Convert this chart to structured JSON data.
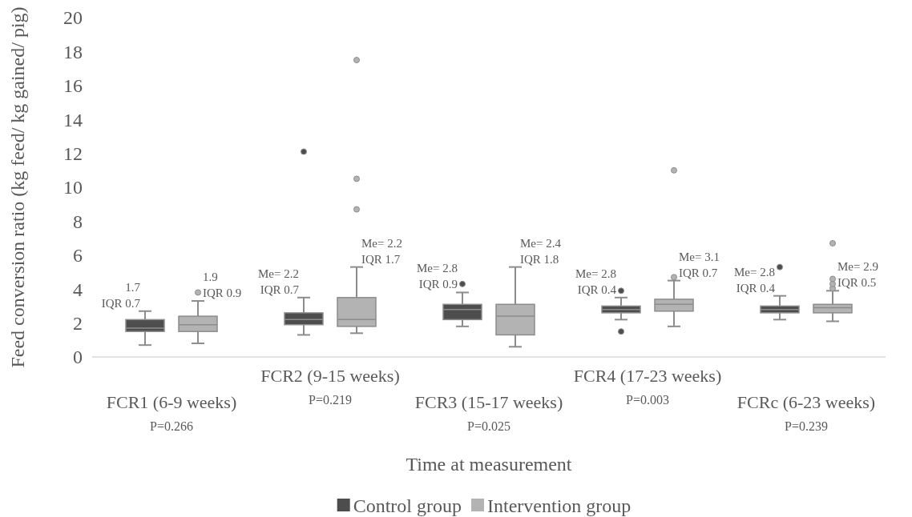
{
  "chart_data": {
    "type": "box",
    "xlabel": "Time at measurement",
    "ylabel": "Feed conversion ratio (kg feed/ kg gained/ pig)",
    "categories": [
      "FCR1 (6-9 weeks)",
      "FCR2 (9-15 weeks)",
      "FCR3 (15-17 weeks)",
      "FCR4 (17-23 weeks)",
      "FCRc (6-23 weeks)"
    ],
    "ylim": [
      0,
      20
    ],
    "yticks": [
      0,
      2,
      4,
      6,
      8,
      10,
      12,
      14,
      16,
      18,
      20
    ],
    "grid": false,
    "legend": "bottom",
    "series": [
      {
        "name": "Control group",
        "color": "#4d4d4d",
        "value_labels": [
          "1.7\nIQR 0.7",
          "Me= 2.2\nIQR 0.7",
          "Me= 2.8\nIQR 0.9",
          "Me= 2.8\nIQR 0.4",
          "Me= 2.8\nIQR 0.4"
        ],
        "boxes": [
          {
            "low": 0.7,
            "q1": 1.5,
            "median": 1.7,
            "q3": 2.2,
            "high": 2.7
          },
          {
            "low": 1.3,
            "q1": 1.9,
            "median": 2.2,
            "q3": 2.6,
            "high": 3.5,
            "outliers": [
              12.1
            ]
          },
          {
            "low": 1.8,
            "q1": 2.2,
            "median": 2.8,
            "q3": 3.1,
            "high": 3.8,
            "outliers": [
              4.3
            ]
          },
          {
            "low": 2.2,
            "q1": 2.6,
            "median": 2.8,
            "q3": 3.0,
            "high": 3.5,
            "outliers": [
              3.9,
              1.5
            ]
          },
          {
            "low": 2.2,
            "q1": 2.6,
            "median": 2.8,
            "q3": 3.0,
            "high": 3.6,
            "outliers": [
              5.3
            ]
          }
        ]
      },
      {
        "name": "Intervention group",
        "color": "#b3b3b3",
        "value_labels": [
          "1.9\nIQR 0.9",
          "Me= 2.2\nIQR 1.7",
          "Me= 2.4\nIQR 1.8",
          "Me= 3.1\nIQR 0.7",
          "Me= 2.9\nIQR 0.5"
        ],
        "boxes": [
          {
            "low": 0.8,
            "q1": 1.5,
            "median": 1.9,
            "q3": 2.4,
            "high": 3.3,
            "outliers": [
              3.8
            ]
          },
          {
            "low": 1.4,
            "q1": 1.8,
            "median": 2.2,
            "q3": 3.5,
            "high": 5.3,
            "outliers": [
              8.7,
              10.5,
              17.5
            ]
          },
          {
            "low": 0.6,
            "q1": 1.3,
            "median": 2.4,
            "q3": 3.1,
            "high": 5.3
          },
          {
            "low": 1.8,
            "q1": 2.7,
            "median": 3.1,
            "q3": 3.4,
            "high": 4.5,
            "outliers": [
              4.7,
              11.0
            ]
          },
          {
            "low": 2.1,
            "q1": 2.6,
            "median": 2.9,
            "q3": 3.1,
            "high": 3.9,
            "outliers": [
              4.05,
              4.3,
              4.6,
              6.7
            ]
          }
        ]
      }
    ],
    "annotations": [
      "P=0.266",
      "P=0.219",
      "P=0.025",
      "P=0.003",
      "P=0.239"
    ]
  }
}
